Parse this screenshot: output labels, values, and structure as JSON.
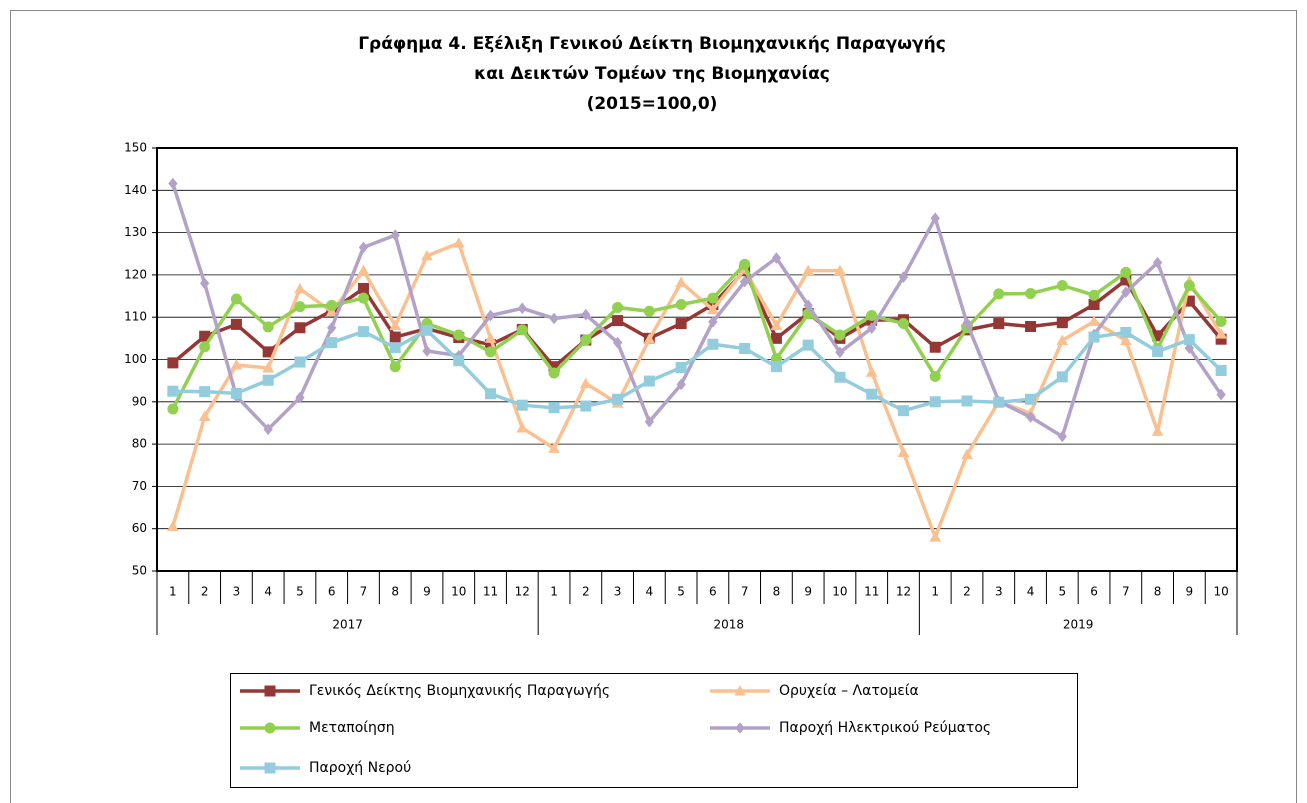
{
  "chart_data": {
    "type": "line",
    "title": [
      "Γράφημα 4. Εξέλιξη Γενικού Δείκτη Βιομηχανικής Παραγωγής",
      "και Δεικτών Τομέων της Βιομηχανίας",
      "(2015=100,0)"
    ],
    "category_groups": [
      {
        "label": "2017",
        "categories": [
          "1",
          "2",
          "3",
          "4",
          "5",
          "6",
          "7",
          "8",
          "9",
          "10",
          "11",
          "12"
        ]
      },
      {
        "label": "2018",
        "categories": [
          "1",
          "2",
          "3",
          "4",
          "5",
          "6",
          "7",
          "8",
          "9",
          "10",
          "11",
          "12"
        ]
      },
      {
        "label": "2019",
        "categories": [
          "1",
          "2",
          "3",
          "4",
          "5",
          "6",
          "7",
          "8",
          "9",
          "10"
        ]
      }
    ],
    "ylim": [
      50,
      150
    ],
    "yticks": [
      50,
      60,
      70,
      80,
      90,
      100,
      110,
      120,
      130,
      140,
      150
    ],
    "grid": true,
    "series": [
      {
        "name": "Γενικός Δείκτης Βιομηχανικής Παραγωγής",
        "color": "#953735",
        "marker": "square",
        "values": [
          99.2,
          105.5,
          108.3,
          101.8,
          107.5,
          111.5,
          116.8,
          105.3,
          107.3,
          105.2,
          103.5,
          107.1,
          98.3,
          104.6,
          109.2,
          105.0,
          108.5,
          113.0,
          121.0,
          105.0,
          110.9,
          105.0,
          109.3,
          109.4,
          102.9,
          107.0,
          108.5,
          107.8,
          108.7,
          113.0,
          118.8,
          105.6,
          113.8,
          104.8
        ]
      },
      {
        "name": "Ορυχεία – Λατομεία",
        "color": "#fac090",
        "marker": "triangle",
        "values": [
          60.5,
          86.5,
          98.7,
          98.0,
          116.7,
          111.3,
          121.0,
          108.0,
          124.5,
          127.5,
          105.0,
          83.8,
          79.0,
          94.3,
          89.7,
          104.8,
          118.2,
          111.8,
          121.3,
          108.0,
          121.0,
          121.0,
          97.0,
          78.0,
          58.0,
          77.5,
          90.0,
          87.3,
          104.5,
          109.0,
          104.5,
          83.0,
          118.5,
          106.0
        ]
      },
      {
        "name": "Μεταποίηση",
        "color": "#92d050",
        "marker": "circle",
        "values": [
          88.3,
          103.0,
          114.3,
          107.7,
          112.5,
          112.8,
          114.5,
          98.3,
          108.5,
          105.8,
          101.8,
          107.0,
          96.8,
          104.6,
          112.3,
          111.4,
          113.0,
          114.5,
          122.5,
          100.2,
          110.8,
          105.8,
          110.4,
          108.5,
          96.0,
          107.5,
          115.5,
          115.6,
          117.5,
          115.2,
          120.6,
          102.6,
          117.5,
          109.0
        ]
      },
      {
        "name": "Παροχή Ηλεκτρικού Ρεύματος",
        "color": "#b3a2c7",
        "marker": "diamond",
        "values": [
          141.6,
          118.0,
          91.3,
          83.5,
          91.0,
          107.5,
          126.5,
          129.4,
          102.0,
          100.9,
          110.4,
          112.1,
          109.7,
          110.6,
          104.0,
          85.3,
          94.1,
          108.9,
          118.4,
          124.0,
          112.8,
          101.7,
          107.4,
          119.5,
          133.4,
          108.6,
          90.1,
          86.4,
          81.8,
          105.9,
          115.9,
          122.9,
          102.7,
          91.7
        ]
      },
      {
        "name": "Παροχή Νερού",
        "color": "#93cddd",
        "marker": "square",
        "values": [
          92.5,
          92.4,
          92.0,
          95.1,
          99.4,
          104.0,
          106.6,
          102.8,
          106.9,
          99.7,
          91.9,
          89.2,
          88.6,
          89.0,
          90.6,
          94.9,
          98.1,
          103.6,
          102.6,
          98.3,
          103.4,
          95.8,
          91.8,
          87.9,
          90.0,
          90.2,
          89.9,
          90.6,
          95.9,
          105.3,
          106.4,
          101.9,
          104.7,
          97.4
        ]
      }
    ]
  }
}
